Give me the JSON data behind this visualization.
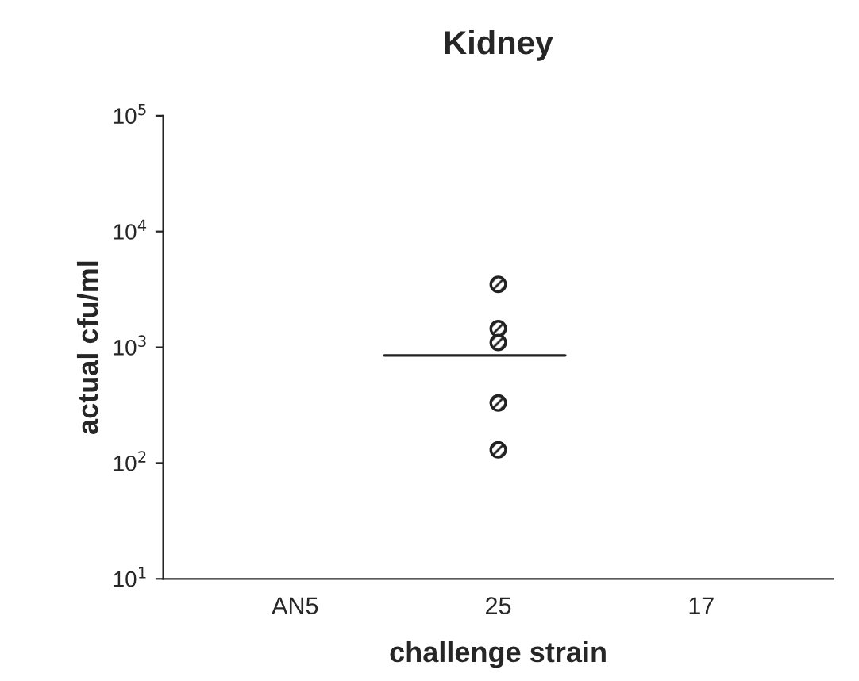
{
  "chart_data": {
    "type": "scatter",
    "title": "Kidney",
    "xlabel": "challenge strain",
    "ylabel": "actual cfu/ml",
    "categories": [
      "AN5",
      "25",
      "17"
    ],
    "series": [
      {
        "marker": "circle",
        "color": "#222222",
        "x": [
          "25",
          "25",
          "25",
          "25",
          "25"
        ],
        "values": [
          3500,
          1450,
          1100,
          330,
          130
        ]
      }
    ],
    "ref_lines": [
      {
        "axis": "y",
        "value": 850,
        "color": "#222222",
        "line_style": "solid"
      }
    ],
    "log": true,
    "ylim": [
      10,
      100000
    ],
    "yticks": [
      {
        "value": 10,
        "label": "10$^{1}$"
      },
      {
        "value": 100,
        "label": "10$^{2}$"
      },
      {
        "value": 1000,
        "label": "10$^{3}$"
      },
      {
        "value": 10000,
        "label": "10$^{4}$"
      },
      {
        "value": 100000,
        "label": "10$^{5}$"
      }
    ],
    "grid": false,
    "legend": false
  }
}
